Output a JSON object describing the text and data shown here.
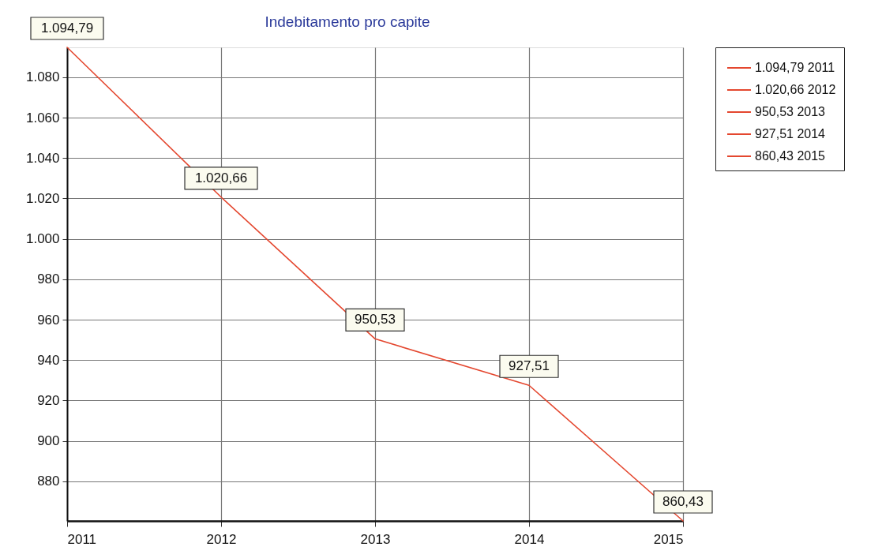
{
  "chart_data": {
    "type": "line",
    "title": "Indebitamento pro capite",
    "categories": [
      "2011",
      "2012",
      "2013",
      "2014",
      "2015"
    ],
    "series": [
      {
        "color": "#e4472f",
        "values": [
          1094.79,
          1020.66,
          950.53,
          927.51,
          860.43
        ],
        "value_labels": [
          "1.094,79",
          "1.020,66",
          "950,53",
          "927,51",
          "860,43"
        ]
      }
    ],
    "ylim": [
      860.43,
      1094.79
    ],
    "yticks": [
      880,
      900,
      920,
      940,
      960,
      980,
      {
        "value": 1000,
        "label": "1.000"
      },
      {
        "value": 1020,
        "label": "1.020"
      },
      {
        "value": 1040,
        "label": "1.040"
      },
      {
        "value": 1060,
        "label": "1.060"
      },
      {
        "value": 1080,
        "label": "1.080"
      }
    ],
    "annotations": [
      "1.094,79 2011",
      "1.020,66 2012",
      "950,53 2013",
      "927,51 2014",
      "860,43 2015"
    ],
    "grid": true
  }
}
